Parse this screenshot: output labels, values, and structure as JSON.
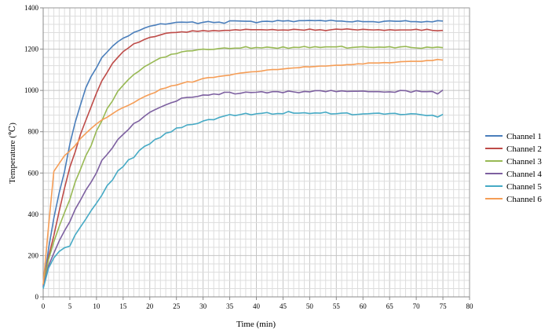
{
  "chart_data": {
    "type": "line",
    "title": "",
    "xlabel": "Time (min)",
    "ylabel": "Temperature (℃)",
    "xlim": [
      0,
      80
    ],
    "ylim": [
      0,
      1400
    ],
    "x_ticks": [
      0,
      5,
      10,
      15,
      20,
      25,
      30,
      35,
      40,
      45,
      50,
      55,
      60,
      65,
      70,
      75,
      80
    ],
    "y_ticks": [
      0,
      200,
      400,
      600,
      800,
      1000,
      1200,
      1400
    ],
    "grid": true,
    "legend_position": "right",
    "x": [
      0,
      1,
      2,
      3,
      4,
      5,
      6,
      7,
      8,
      9,
      10,
      11,
      12,
      13,
      14,
      15,
      16,
      17,
      18,
      19,
      20,
      21,
      22,
      23,
      24,
      25,
      26,
      27,
      28,
      29,
      30,
      31,
      32,
      33,
      34,
      35,
      36,
      37,
      38,
      39,
      40,
      41,
      42,
      43,
      44,
      45,
      46,
      47,
      48,
      49,
      50,
      51,
      52,
      53,
      54,
      55,
      56,
      57,
      58,
      59,
      60,
      61,
      62,
      63,
      64,
      65,
      66,
      67,
      68,
      69,
      70,
      71,
      72,
      73,
      74,
      75
    ],
    "series": [
      {
        "name": "Channel 1",
        "color": "#4A7EBB",
        "values": [
          45,
          232,
          382,
          504,
          607,
          740,
          845,
          930,
          1013,
          1068,
          1110,
          1159,
          1186,
          1214,
          1236,
          1253,
          1264,
          1281,
          1290,
          1302,
          1311,
          1316,
          1323,
          1321,
          1325,
          1330,
          1331,
          1330,
          1332,
          1324,
          1330,
          1334,
          1329,
          1331,
          1325,
          1337,
          1337,
          1336,
          1335,
          1335,
          1328,
          1334,
          1335,
          1333,
          1339,
          1336,
          1338,
          1333,
          1338,
          1338,
          1339,
          1338,
          1339,
          1336,
          1340,
          1336,
          1336,
          1333,
          1332,
          1337,
          1333,
          1333,
          1333,
          1330,
          1335,
          1337,
          1335,
          1335,
          1338,
          1333,
          1333,
          1331,
          1334,
          1332,
          1338,
          1336
        ]
      },
      {
        "name": "Channel 2",
        "color": "#BE4B48",
        "values": [
          55,
          194,
          297,
          415,
          526,
          628,
          702,
          788,
          855,
          921,
          987,
          1046,
          1087,
          1131,
          1160,
          1188,
          1206,
          1226,
          1234,
          1247,
          1257,
          1261,
          1269,
          1277,
          1280,
          1281,
          1284,
          1282,
          1289,
          1286,
          1290,
          1287,
          1290,
          1288,
          1291,
          1291,
          1294,
          1292,
          1296,
          1294,
          1294,
          1294,
          1293,
          1295,
          1292,
          1293,
          1292,
          1296,
          1294,
          1292,
          1297,
          1292,
          1294,
          1290,
          1294,
          1297,
          1295,
          1298,
          1295,
          1293,
          1296,
          1294,
          1293,
          1294,
          1291,
          1294,
          1292,
          1293,
          1293,
          1293,
          1296,
          1291,
          1296,
          1291,
          1289,
          1291
        ]
      },
      {
        "name": "Channel 3",
        "color": "#98B954",
        "values": [
          60,
          180,
          267,
          341,
          408,
          472,
          556,
          618,
          684,
          733,
          804,
          852,
          912,
          949,
          996,
          1025,
          1053,
          1077,
          1094,
          1115,
          1129,
          1144,
          1158,
          1162,
          1175,
          1178,
          1187,
          1191,
          1192,
          1197,
          1200,
          1198,
          1199,
          1203,
          1206,
          1203,
          1205,
          1205,
          1212,
          1204,
          1208,
          1206,
          1210,
          1207,
          1204,
          1211,
          1204,
          1209,
          1208,
          1213,
          1207,
          1212,
          1208,
          1211,
          1211,
          1211,
          1214,
          1205,
          1208,
          1210,
          1212,
          1209,
          1208,
          1210,
          1209,
          1212,
          1206,
          1211,
          1213,
          1208,
          1206,
          1204,
          1210,
          1207,
          1210,
          1207
        ]
      },
      {
        "name": "Channel 4",
        "color": "#7D60A0",
        "values": [
          50,
          151,
          212,
          271,
          320,
          364,
          424,
          469,
          517,
          556,
          601,
          661,
          690,
          722,
          762,
          787,
          811,
          840,
          853,
          875,
          894,
          907,
          919,
          930,
          940,
          948,
          963,
          966,
          967,
          971,
          978,
          977,
          983,
          980,
          991,
          991,
          983,
          986,
          992,
          990,
          991,
          994,
          988,
          994,
          994,
          989,
          997,
          993,
          989,
          995,
          993,
          999,
          999,
          994,
          1000,
          994,
          998,
          995,
          996,
          996,
          997,
          994,
          994,
          994,
          992,
          993,
          991,
          1000,
          999,
          991,
          999,
          994,
          994,
          995,
          983,
          1002
        ]
      },
      {
        "name": "Channel 5",
        "color": "#46AAC5",
        "values": [
          40,
          139,
          189,
          220,
          238,
          246,
          300,
          339,
          377,
          418,
          454,
          492,
          539,
          566,
          610,
          631,
          664,
          675,
          708,
          729,
          741,
          763,
          772,
          793,
          799,
          818,
          820,
          833,
          835,
          840,
          852,
          859,
          858,
          869,
          876,
          883,
          878,
          883,
          889,
          882,
          887,
          889,
          893,
          885,
          888,
          887,
          898,
          890,
          890,
          892,
          888,
          891,
          890,
          895,
          886,
          887,
          890,
          891,
          882,
          884,
          886,
          887,
          889,
          890,
          885,
          888,
          889,
          883,
          884,
          887,
          886,
          882,
          878,
          880,
          871,
          884
        ]
      },
      {
        "name": "Channel 6",
        "color": "#F59D56",
        "values": [
          60,
          340,
          608,
          646,
          684,
          707,
          733,
          767,
          792,
          816,
          838,
          857,
          870,
          887,
          904,
          917,
          928,
          941,
          957,
          970,
          981,
          990,
          1006,
          1012,
          1022,
          1026,
          1034,
          1042,
          1040,
          1049,
          1058,
          1062,
          1063,
          1068,
          1071,
          1074,
          1080,
          1084,
          1087,
          1090,
          1091,
          1094,
          1099,
          1101,
          1101,
          1104,
          1107,
          1109,
          1110,
          1115,
          1114,
          1116,
          1118,
          1118,
          1120,
          1122,
          1122,
          1125,
          1125,
          1129,
          1128,
          1133,
          1133,
          1133,
          1135,
          1134,
          1136,
          1139,
          1140,
          1141,
          1141,
          1141,
          1145,
          1145,
          1150,
          1147
        ]
      }
    ]
  }
}
